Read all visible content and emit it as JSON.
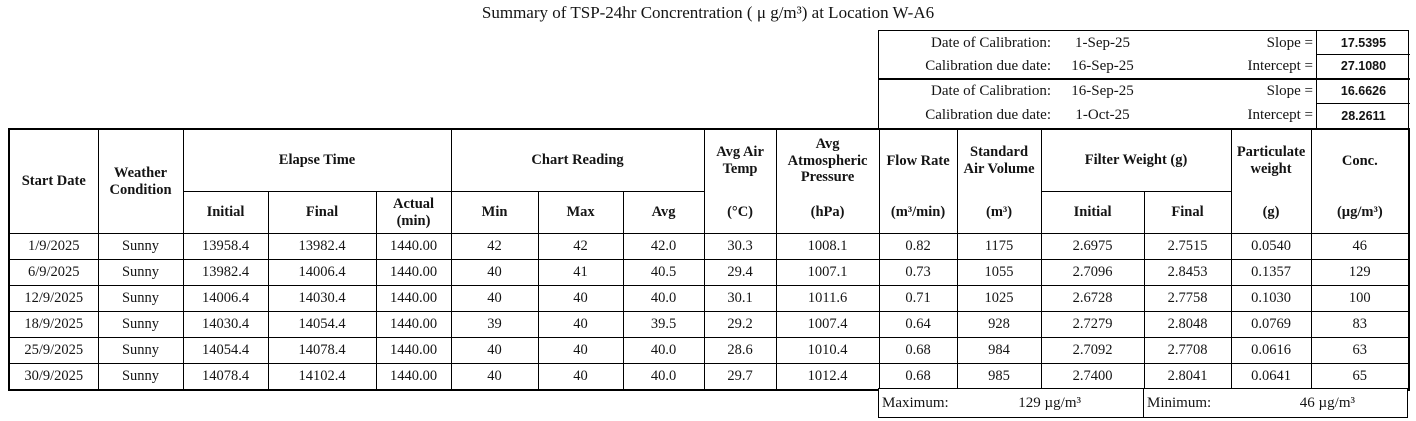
{
  "page_title": "Summary of TSP-24hr Concrentration ( μ g/m³) at Location W-A6",
  "calibration": {
    "rows": [
      {
        "label": "Date of Calibration:",
        "date": "1-Sep-25",
        "coef_label": "Slope =",
        "coef_value": "17.5395"
      },
      {
        "label": "Calibration due date:",
        "date": "16-Sep-25",
        "coef_label": "Intercept =",
        "coef_value": "27.1080"
      },
      {
        "label": "Date of Calibration:",
        "date": "16-Sep-25",
        "coef_label": "Slope =",
        "coef_value": "16.6626"
      },
      {
        "label": "Calibration due date:",
        "date": "1-Oct-25",
        "coef_label": "Intercept =",
        "coef_value": "28.2611"
      }
    ]
  },
  "table": {
    "headers": {
      "start_date": "Start Date",
      "weather_condition": "Weather Condition",
      "elapse_time": "Elapse Time",
      "elapse_initial": "Initial",
      "elapse_final": "Final",
      "elapse_actual": "Actual",
      "elapse_actual_unit": "(min)",
      "chart_reading": "Chart Reading",
      "chart_min": "Min",
      "chart_max": "Max",
      "chart_avg": "Avg",
      "avg_air_temp": "Avg Air Temp",
      "avg_air_temp_unit": "(°C)",
      "avg_atm_pressure": "Avg Atmospheric Pressure",
      "avg_atm_pressure_unit": "(hPa)",
      "flow_rate": "Flow Rate",
      "flow_rate_unit": "(m³/min)",
      "std_air_volume": "Standard Air Volume",
      "std_air_volume_unit": "(m³)",
      "filter_weight": "Filter Weight (g)",
      "filter_initial": "Initial",
      "filter_final": "Final",
      "particulate_weight": "Particulate weight",
      "particulate_weight_unit": "(g)",
      "conc": "Conc.",
      "conc_unit": "(µg/m³)"
    },
    "rows": [
      [
        "1/9/2025",
        "Sunny",
        "13958.4",
        "13982.4",
        "1440.00",
        "42",
        "42",
        "42.0",
        "30.3",
        "1008.1",
        "0.82",
        "1175",
        "2.6975",
        "2.7515",
        "0.0540",
        "46"
      ],
      [
        "6/9/2025",
        "Sunny",
        "13982.4",
        "14006.4",
        "1440.00",
        "40",
        "41",
        "40.5",
        "29.4",
        "1007.1",
        "0.73",
        "1055",
        "2.7096",
        "2.8453",
        "0.1357",
        "129"
      ],
      [
        "12/9/2025",
        "Sunny",
        "14006.4",
        "14030.4",
        "1440.00",
        "40",
        "40",
        "40.0",
        "30.1",
        "1011.6",
        "0.71",
        "1025",
        "2.6728",
        "2.7758",
        "0.1030",
        "100"
      ],
      [
        "18/9/2025",
        "Sunny",
        "14030.4",
        "14054.4",
        "1440.00",
        "39",
        "40",
        "39.5",
        "29.2",
        "1007.4",
        "0.64",
        "928",
        "2.7279",
        "2.8048",
        "0.0769",
        "83"
      ],
      [
        "25/9/2025",
        "Sunny",
        "14054.4",
        "14078.4",
        "1440.00",
        "40",
        "40",
        "40.0",
        "28.6",
        "1010.4",
        "0.68",
        "984",
        "2.7092",
        "2.7708",
        "0.0616",
        "63"
      ],
      [
        "30/9/2025",
        "Sunny",
        "14078.4",
        "14102.4",
        "1440.00",
        "40",
        "40",
        "40.0",
        "29.7",
        "1012.4",
        "0.68",
        "985",
        "2.7400",
        "2.8041",
        "0.0641",
        "65"
      ]
    ]
  },
  "summary": {
    "max_label": "Maximum:",
    "max_value": "129 µg/m³",
    "min_label": "Minimum:",
    "min_value": "46 µg/m³"
  }
}
